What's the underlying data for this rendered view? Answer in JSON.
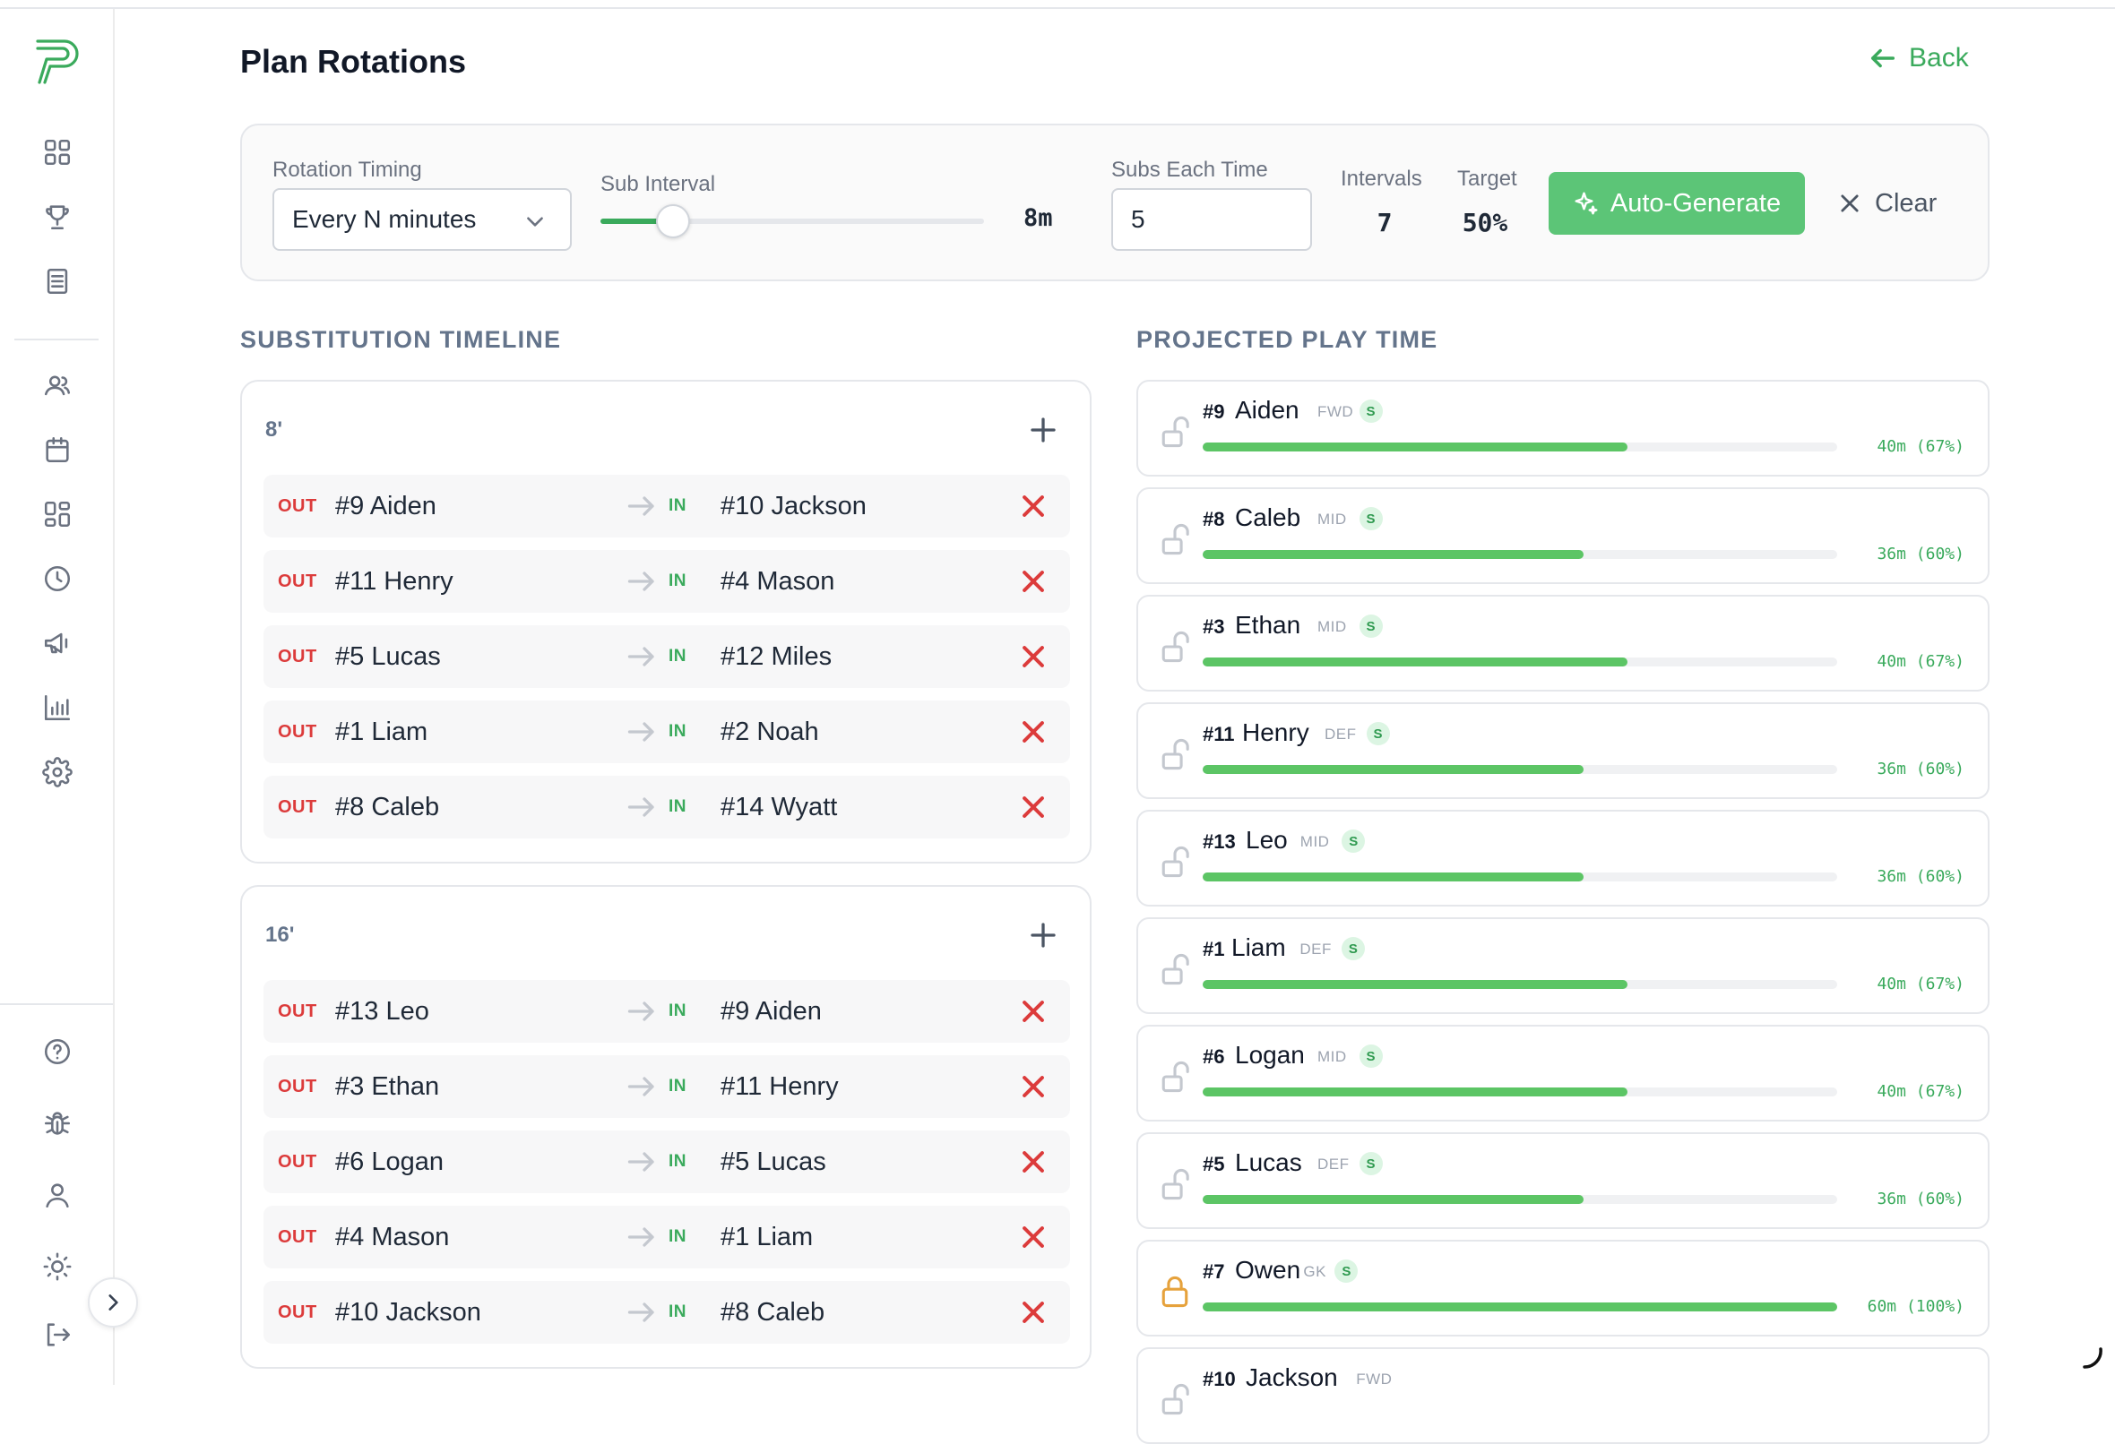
{
  "header": {
    "title": "Plan Rotations",
    "back_label": "Back"
  },
  "controls": {
    "rotation_timing_label": "Rotation Timing",
    "rotation_timing_value": "Every N minutes",
    "sub_interval_label": "Sub Interval",
    "sub_interval_value": "8m",
    "sub_interval_level": 0.19,
    "subs_each_time_label": "Subs Each Time",
    "subs_each_time_value": "5",
    "intervals_label": "Intervals",
    "intervals_value": "7",
    "target_label": "Target",
    "target_value": "50%",
    "auto_generate_label": "Auto-Generate",
    "clear_label": "Clear"
  },
  "timeline": {
    "heading": "SUBSTITUTION TIMELINE",
    "groups": [
      {
        "time": "8'",
        "subs": [
          {
            "out_tag": "OUT",
            "out": "#9 Aiden",
            "in_tag": "IN",
            "in": "#10 Jackson"
          },
          {
            "out_tag": "OUT",
            "out": "#11 Henry",
            "in_tag": "IN",
            "in": "#4 Mason"
          },
          {
            "out_tag": "OUT",
            "out": "#5 Lucas",
            "in_tag": "IN",
            "in": "#12 Miles"
          },
          {
            "out_tag": "OUT",
            "out": "#1 Liam",
            "in_tag": "IN",
            "in": "#2 Noah"
          },
          {
            "out_tag": "OUT",
            "out": "#8 Caleb",
            "in_tag": "IN",
            "in": "#14 Wyatt"
          }
        ]
      },
      {
        "time": "16'",
        "subs": [
          {
            "out_tag": "OUT",
            "out": "#13 Leo",
            "in_tag": "IN",
            "in": "#9 Aiden"
          },
          {
            "out_tag": "OUT",
            "out": "#3 Ethan",
            "in_tag": "IN",
            "in": "#11 Henry"
          },
          {
            "out_tag": "OUT",
            "out": "#6 Logan",
            "in_tag": "IN",
            "in": "#5 Lucas"
          },
          {
            "out_tag": "OUT",
            "out": "#4 Mason",
            "in_tag": "IN",
            "in": "#1 Liam"
          },
          {
            "out_tag": "OUT",
            "out": "#10 Jackson",
            "in_tag": "IN",
            "in": "#8 Caleb"
          }
        ]
      }
    ]
  },
  "play_time": {
    "heading": "PROJECTED PLAY TIME",
    "players": [
      {
        "num": "#9",
        "name": "Aiden",
        "pos": "FWD",
        "badge": "S",
        "meta": "40m (67%)",
        "fraction": 0.67,
        "locked": false
      },
      {
        "num": "#8",
        "name": "Caleb",
        "pos": "MID",
        "badge": "S",
        "meta": "36m (60%)",
        "fraction": 0.6,
        "locked": false
      },
      {
        "num": "#3",
        "name": "Ethan",
        "pos": "MID",
        "badge": "S",
        "meta": "40m (67%)",
        "fraction": 0.67,
        "locked": false
      },
      {
        "num": "#11",
        "name": "Henry",
        "pos": "DEF",
        "badge": "S",
        "meta": "36m (60%)",
        "fraction": 0.6,
        "locked": false
      },
      {
        "num": "#13",
        "name": "Leo",
        "pos": "MID",
        "badge": "S",
        "meta": "36m (60%)",
        "fraction": 0.6,
        "locked": false
      },
      {
        "num": "#1",
        "name": "Liam",
        "pos": "DEF",
        "badge": "S",
        "meta": "40m (67%)",
        "fraction": 0.67,
        "locked": false
      },
      {
        "num": "#6",
        "name": "Logan",
        "pos": "MID",
        "badge": "S",
        "meta": "40m (67%)",
        "fraction": 0.67,
        "locked": false
      },
      {
        "num": "#5",
        "name": "Lucas",
        "pos": "DEF",
        "badge": "S",
        "meta": "36m (60%)",
        "fraction": 0.6,
        "locked": false
      },
      {
        "num": "#7",
        "name": "Owen",
        "pos": "GK",
        "badge": "S",
        "meta": "60m (100%)",
        "fraction": 1.0,
        "locked": true
      },
      {
        "num": "#10",
        "name": "Jackson",
        "pos": "FWD",
        "badge": "",
        "meta": "",
        "fraction": 0,
        "locked": false
      }
    ]
  },
  "sidebar": {
    "items": [
      "dashboard-icon",
      "trophy-icon",
      "notebook-icon",
      "users-icon",
      "calendar-icon",
      "layout-icon",
      "clock-icon",
      "megaphone-icon",
      "bar-chart-icon",
      "gear-icon"
    ],
    "bottom_items": [
      "help-icon",
      "bug-icon",
      "user-icon",
      "sun-icon",
      "logout-icon"
    ]
  },
  "colors": {
    "accent": "#3aaa5c",
    "button": "#5cc577",
    "danger": "#dc3b3b",
    "lock_active": "#e6a23c"
  }
}
